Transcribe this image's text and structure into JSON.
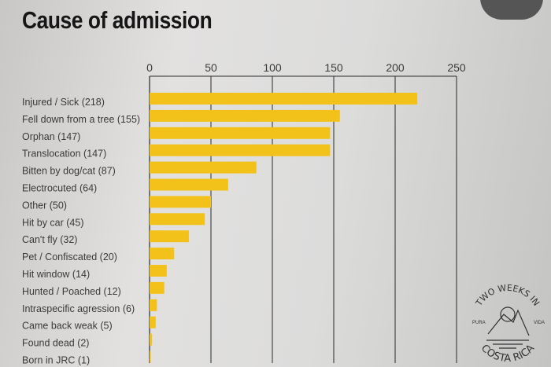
{
  "chart_data": {
    "type": "bar",
    "orientation": "horizontal",
    "title": "Cause of admission",
    "categories": [
      "Injured / Sick (218)",
      "Fell down from a tree (155)",
      "Orphan (147)",
      "Translocation (147)",
      "Bitten by dog/cat (87)",
      "Electrocuted (64)",
      "Other (50)",
      "Hit by car (45)",
      "Can't fly (32)",
      "Pet / Confiscated (20)",
      "Hit window (14)",
      "Hunted / Poached (12)",
      "Intraspecific agression (6)",
      "Came back weak (5)",
      "Found dead (2)",
      "Born in JRC (1)"
    ],
    "values": [
      218,
      155,
      147,
      147,
      87,
      64,
      50,
      45,
      32,
      20,
      14,
      12,
      6,
      5,
      2,
      1
    ],
    "xlim": [
      0,
      250
    ],
    "xticks": [
      "0",
      "50",
      "100",
      "150",
      "200",
      "250"
    ],
    "xaxis_position": "top",
    "grid": true,
    "bar_color": "#f2c21b"
  },
  "watermark": {
    "top": "TWO WEEKS IN",
    "bottom": "COSTA RICA",
    "left": "PURA",
    "right": "VIDA"
  }
}
